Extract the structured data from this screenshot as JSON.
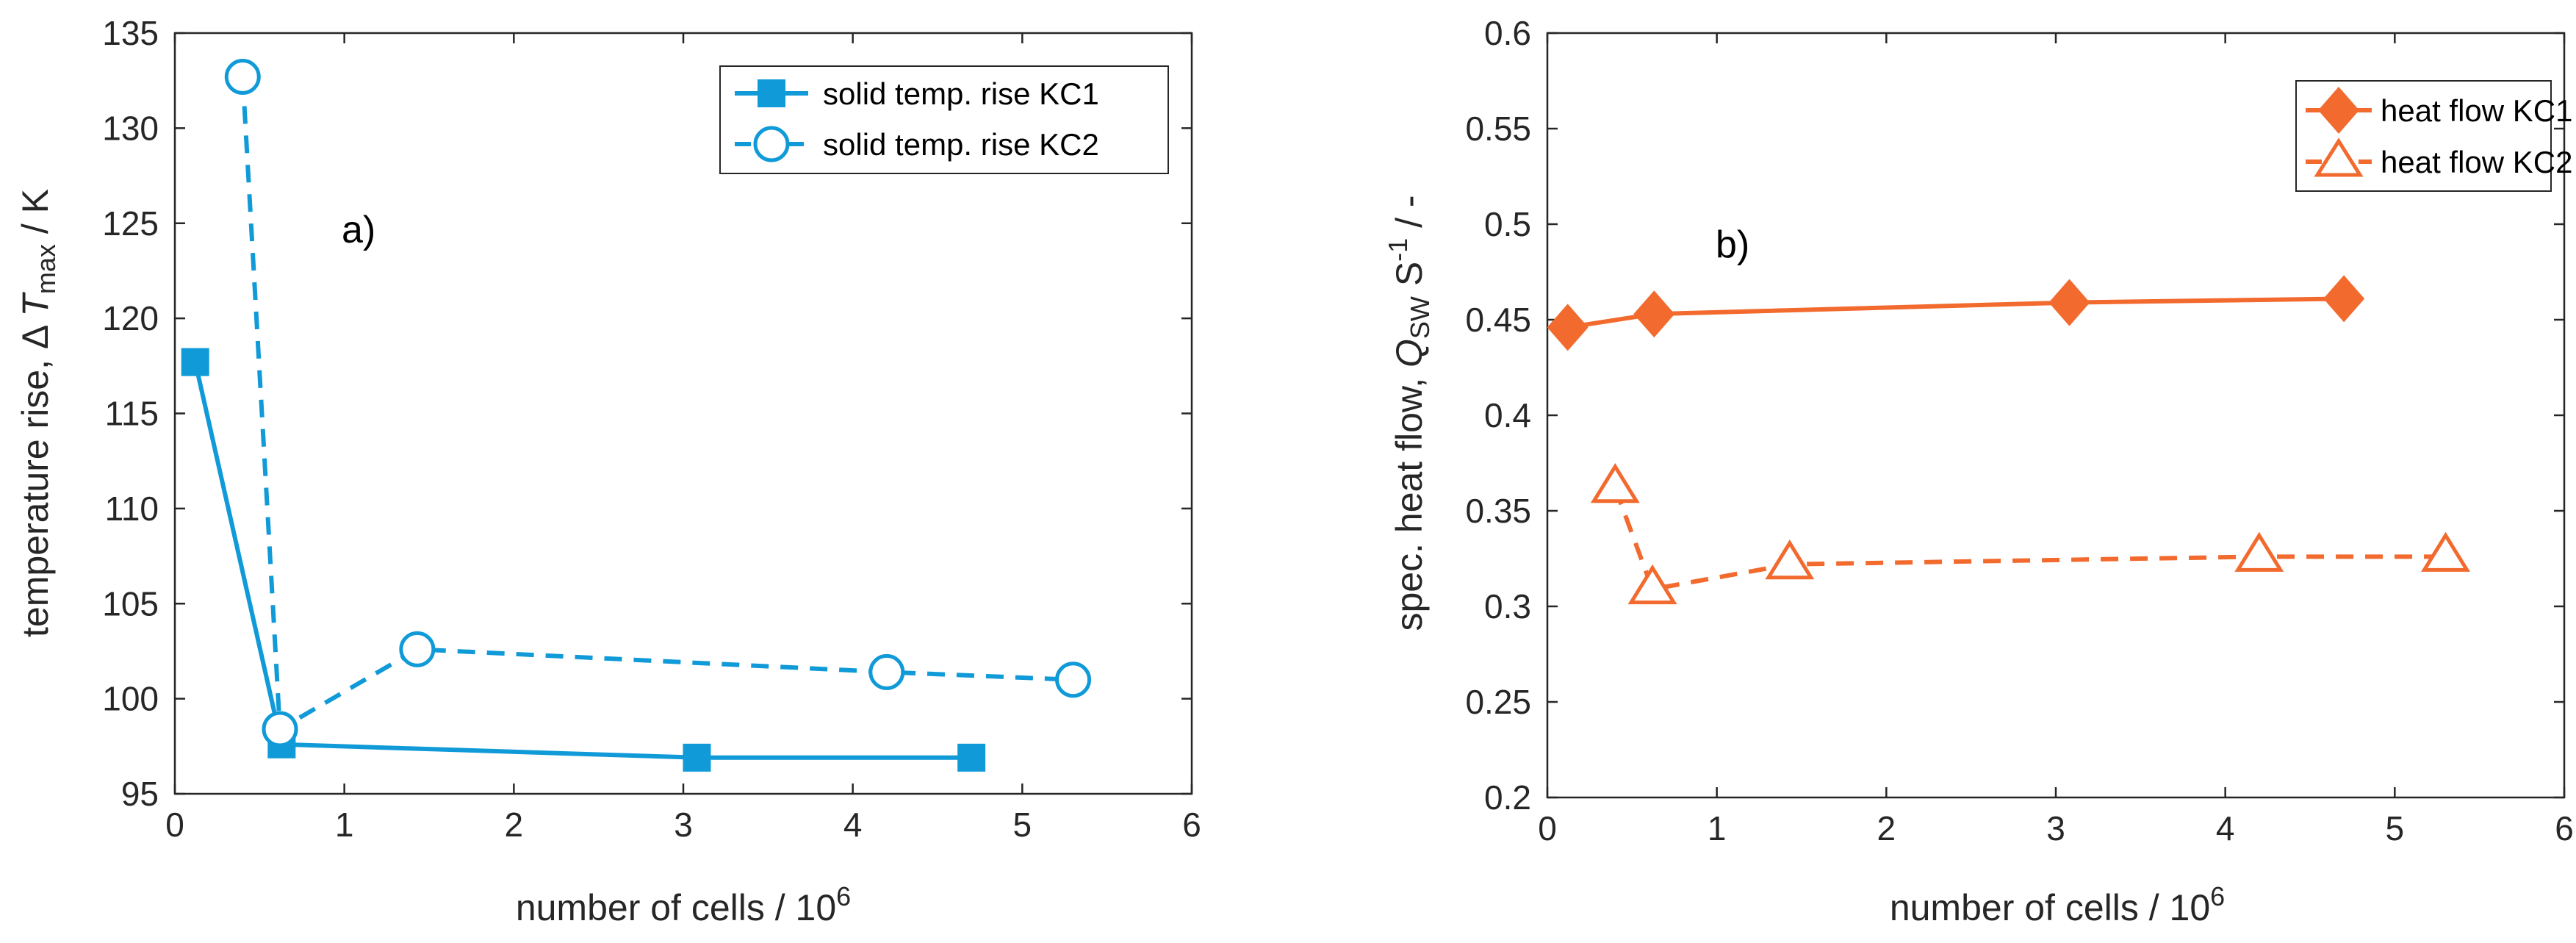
{
  "chart_data": [
    {
      "type": "line",
      "annotation": "a)",
      "xlabel": "number of cells / 10",
      "xlabel_sup": "6",
      "ylabel_prefix": "temperature rise, Δ ",
      "ylabel_var": "T",
      "ylabel_sub": "max",
      "ylabel_suffix": " / K",
      "xlim": [
        0,
        6
      ],
      "ylim": [
        95,
        135
      ],
      "xticks": [
        0,
        1,
        2,
        3,
        4,
        5,
        6
      ],
      "yticks": [
        95,
        100,
        105,
        110,
        115,
        120,
        125,
        130,
        135
      ],
      "color": "#109AD8",
      "legend_position": "top-right",
      "series": [
        {
          "name": "solid temp. rise KC1",
          "marker": "square",
          "line": "solid",
          "x": [
            0.12,
            0.63,
            3.08,
            4.7
          ],
          "y": [
            117.7,
            97.6,
            96.9,
            96.9
          ]
        },
        {
          "name": "solid temp. rise KC2",
          "marker": "circle",
          "line": "dashed",
          "x": [
            0.4,
            0.62,
            1.43,
            4.2,
            5.3
          ],
          "y": [
            132.7,
            98.4,
            102.6,
            101.4,
            101.0
          ]
        }
      ]
    },
    {
      "type": "line",
      "annotation": "b)",
      "xlabel": "number of cells / 10",
      "xlabel_sup": "6",
      "ylabel_prefix": "spec. heat flow, ",
      "ylabel_var": "Q",
      "ylabel_sub": "SW",
      "ylabel_mid": " S",
      "ylabel_sup": "-1",
      "ylabel_suffix": " / -",
      "xlim": [
        0,
        6
      ],
      "ylim": [
        0.2,
        0.6
      ],
      "xticks": [
        0,
        1,
        2,
        3,
        4,
        5,
        6
      ],
      "yticks": [
        0.2,
        0.25,
        0.3,
        0.35,
        0.4,
        0.45,
        0.5,
        0.55,
        0.6
      ],
      "color": "#F26A2E",
      "legend_position": "top-right",
      "series": [
        {
          "name": "heat flow KC1",
          "marker": "diamond",
          "line": "solid",
          "x": [
            0.12,
            0.63,
            3.08,
            4.7
          ],
          "y": [
            0.446,
            0.453,
            0.459,
            0.461
          ]
        },
        {
          "name": "heat flow KC2",
          "marker": "triangle",
          "line": "dashed",
          "x": [
            0.4,
            0.62,
            1.43,
            4.2,
            5.3
          ],
          "y": [
            0.362,
            0.309,
            0.322,
            0.326,
            0.326
          ]
        }
      ]
    }
  ]
}
